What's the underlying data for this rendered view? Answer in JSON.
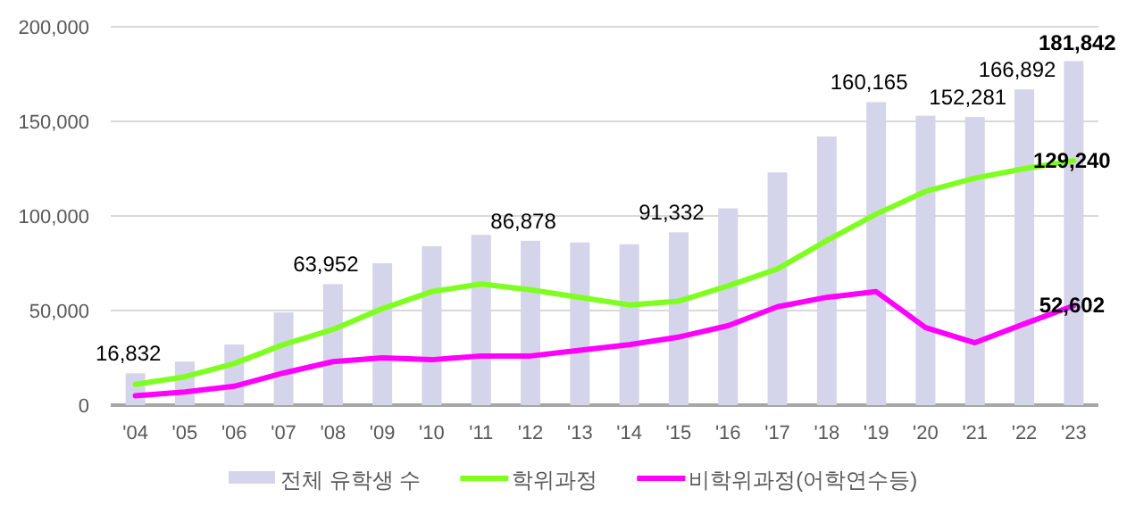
{
  "chart_data": {
    "type": "bar",
    "categories": [
      "'04",
      "'05",
      "'06",
      "'07",
      "'08",
      "'09",
      "'10",
      "'11",
      "'12",
      "'13",
      "'14",
      "'15",
      "'16",
      "'17",
      "'18",
      "'19",
      "'20",
      "'21",
      "'22",
      "'23"
    ],
    "series": [
      {
        "name": "전체 유학생 수",
        "color": "#d4d4ea",
        "values": [
          16832,
          23000,
          32000,
          49000,
          63952,
          75000,
          84000,
          90000,
          86878,
          86000,
          85000,
          91332,
          104000,
          123000,
          142000,
          160165,
          153000,
          152281,
          166892,
          181842
        ],
        "value_labels": [
          "16,832",
          null,
          null,
          null,
          "63,952",
          null,
          null,
          null,
          "86,878",
          null,
          null,
          "91,332",
          null,
          null,
          null,
          "160,165",
          null,
          "152,281",
          "166,892",
          "181,842"
        ]
      },
      {
        "name": "학위과정",
        "type": "line",
        "color": "#7fff1f",
        "values": [
          11000,
          15000,
          22000,
          32000,
          40000,
          51000,
          60000,
          64000,
          61000,
          57000,
          53000,
          55000,
          63000,
          72000,
          87000,
          101000,
          113000,
          120000,
          125000,
          129240
        ],
        "value_labels": [
          null,
          null,
          null,
          null,
          null,
          null,
          null,
          null,
          null,
          null,
          null,
          null,
          null,
          null,
          null,
          null,
          null,
          null,
          null,
          "129,240"
        ]
      },
      {
        "name": "비학위과정(어학연수등)",
        "type": "line",
        "color": "#ff00ff",
        "values": [
          5000,
          7000,
          10000,
          17000,
          23000,
          25000,
          24000,
          26000,
          26000,
          29000,
          32000,
          36000,
          42000,
          52000,
          57000,
          60000,
          41000,
          33000,
          43000,
          52602
        ],
        "value_labels": [
          null,
          null,
          null,
          null,
          null,
          null,
          null,
          null,
          null,
          null,
          null,
          null,
          null,
          null,
          null,
          null,
          null,
          null,
          null,
          "52,602"
        ]
      }
    ],
    "ylim": [
      0,
      200000
    ],
    "yticks": [
      {
        "value": 0,
        "label": "0"
      },
      {
        "value": 50000,
        "label": "50,000"
      },
      {
        "value": 100000,
        "label": "100,000"
      },
      {
        "value": 150000,
        "label": "150,000"
      },
      {
        "value": 200000,
        "label": "200,000"
      }
    ],
    "grid": "y",
    "legend": "bottom",
    "line_style": "solid",
    "marker": "none"
  }
}
